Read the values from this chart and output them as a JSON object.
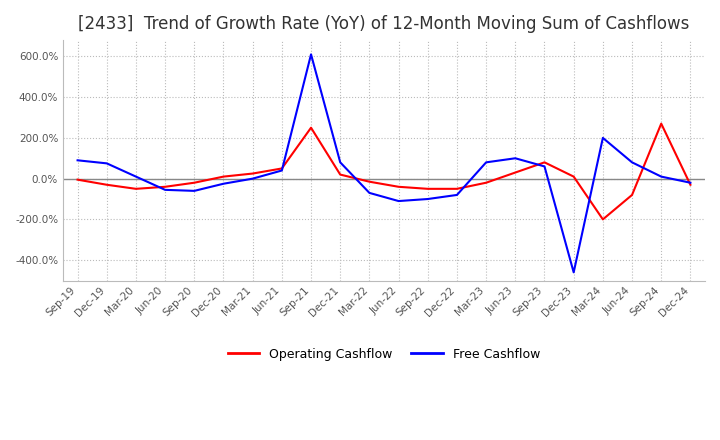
{
  "title": "[2433]  Trend of Growth Rate (YoY) of 12-Month Moving Sum of Cashflows",
  "title_fontsize": 12,
  "ylim": [
    -500,
    680
  ],
  "yticks": [
    -400,
    -200,
    0,
    200,
    400,
    600
  ],
  "background_color": "#ffffff",
  "grid_color": "#bbbbbb",
  "operating_color": "#ff0000",
  "free_color": "#0000ff",
  "legend_labels": [
    "Operating Cashflow",
    "Free Cashflow"
  ],
  "x_labels": [
    "Sep-19",
    "Dec-19",
    "Mar-20",
    "Jun-20",
    "Sep-20",
    "Dec-20",
    "Mar-21",
    "Jun-21",
    "Sep-21",
    "Dec-21",
    "Mar-22",
    "Jun-22",
    "Sep-22",
    "Dec-22",
    "Mar-23",
    "Jun-23",
    "Sep-23",
    "Dec-23",
    "Mar-24",
    "Jun-24",
    "Sep-24",
    "Dec-24"
  ],
  "operating": [
    -5,
    -30,
    -50,
    -40,
    -20,
    10,
    25,
    50,
    250,
    20,
    -15,
    -40,
    -50,
    -50,
    -20,
    30,
    80,
    10,
    -200,
    -80,
    270,
    -30
  ],
  "free": [
    90,
    75,
    10,
    -55,
    -60,
    -25,
    0,
    40,
    610,
    80,
    -70,
    -110,
    -100,
    -80,
    80,
    100,
    60,
    -460,
    200,
    80,
    10,
    -20
  ]
}
